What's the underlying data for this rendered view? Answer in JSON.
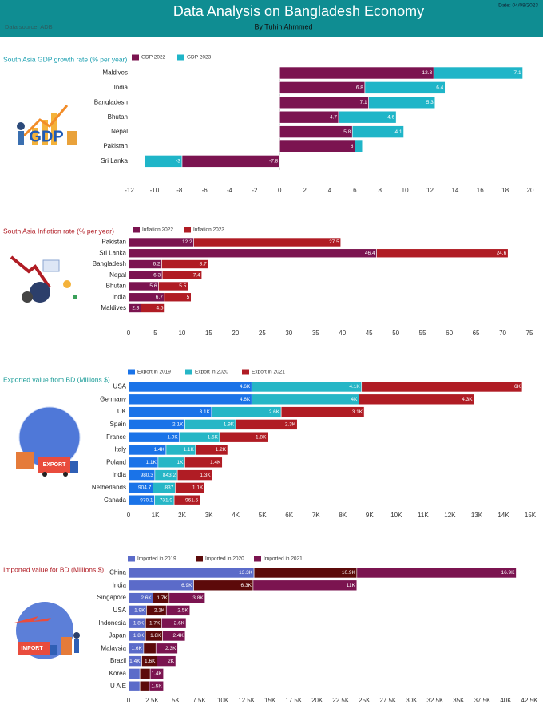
{
  "header": {
    "title": "Data Analysis on Bangladesh Economy",
    "subtitle": "By Tuhin Ahmmed",
    "date": "Date: 04/08/2023",
    "source": "Data source: ADB"
  },
  "chart_data": [
    {
      "type": "bar",
      "orientation": "horizontal",
      "stacked": true,
      "title": "South Asia GDP growth rate (% per year)",
      "title_color": "#1a9fb0",
      "illustration_text": "GDP",
      "categories": [
        "Maldives",
        "India",
        "Bangladesh",
        "Bhutan",
        "Nepal",
        "Pakistan",
        "Sri Lanka"
      ],
      "series": [
        {
          "name": "GDP 2022",
          "color": "#7b1450",
          "values": [
            12.3,
            6.8,
            7.1,
            4.7,
            5.8,
            6,
            -7.8
          ]
        },
        {
          "name": "GDP 2023",
          "color": "#1fb5c8",
          "values": [
            7.1,
            6.4,
            5.3,
            4.6,
            4.1,
            0.6,
            -3
          ]
        }
      ],
      "xlim": [
        -12,
        20
      ],
      "xticks": [
        -12,
        -10,
        -8,
        -6,
        -4,
        -2,
        0,
        2,
        4,
        6,
        8,
        10,
        12,
        14,
        16,
        18,
        20
      ]
    },
    {
      "type": "bar",
      "orientation": "horizontal",
      "stacked": true,
      "title": "South Asia Inflation rate (% per year)",
      "title_color": "#b01c24",
      "categories": [
        "Pakistan",
        "Sri Lanka",
        "Bangladesh",
        "Nepal",
        "Bhutan",
        "India",
        "Maldives"
      ],
      "series": [
        {
          "name": "Inflation 2022",
          "color": "#7b1450",
          "values": [
            12.2,
            46.4,
            6.2,
            6.3,
            5.6,
            6.7,
            2.3
          ]
        },
        {
          "name": "Inflation 2023",
          "color": "#b01c24",
          "values": [
            27.5,
            24.6,
            8.7,
            7.4,
            5.5,
            5,
            4.5
          ]
        }
      ],
      "xlim": [
        0,
        75
      ],
      "xticks": [
        0,
        5,
        10,
        15,
        20,
        25,
        30,
        35,
        40,
        45,
        50,
        55,
        60,
        65,
        70,
        75
      ]
    },
    {
      "type": "bar",
      "orientation": "horizontal",
      "stacked": true,
      "title": "Exported value from BD (Millions $)",
      "title_color": "#1f9e9a",
      "illustration_text": "EXPORT",
      "categories": [
        "USA",
        "Germany",
        "UK",
        "Spain",
        "France",
        "Italy",
        "Poland",
        "India",
        "Netherlands",
        "Canada"
      ],
      "series": [
        {
          "name": "Export in 2019",
          "color": "#1a73e8",
          "values": [
            4600,
            4600,
            3100,
            2100,
            1900,
            1400,
            1100,
            980.3,
            904.7,
            970.1
          ],
          "value_labels": [
            "4.6K",
            "4.6K",
            "3.1K",
            "2.1K",
            "1.9K",
            "1.4K",
            "1.1K",
            "980.3",
            "904.7",
            "970.1"
          ]
        },
        {
          "name": "Export in 2020",
          "color": "#26b6c6",
          "values": [
            4100,
            4000,
            2600,
            1900,
            1500,
            1100,
            1000,
            843.2,
            837,
            731.9
          ],
          "value_labels": [
            "4.1K",
            "4K",
            "2.6K",
            "1.9K",
            "1.5K",
            "1.1K",
            "1K",
            "843.2",
            "837",
            "731.9"
          ]
        },
        {
          "name": "Export in 2021",
          "color": "#b01c24",
          "values": [
            6000,
            4300,
            3100,
            2300,
            1800,
            1200,
            1400,
            1300,
            1100,
            961.5
          ],
          "value_labels": [
            "6K",
            "4.3K",
            "3.1K",
            "2.3K",
            "1.8K",
            "1.2K",
            "1.4K",
            "1.3K",
            "1.1K",
            "961.5"
          ]
        }
      ],
      "xlim": [
        0,
        15000
      ],
      "xticks": [
        0,
        {
          "value": 1000,
          "label": "1K"
        },
        {
          "value": 2000,
          "label": "2K"
        },
        {
          "value": 3000,
          "label": "3K"
        },
        {
          "value": 4000,
          "label": "4K"
        },
        {
          "value": 5000,
          "label": "5K"
        },
        {
          "value": 6000,
          "label": "6K"
        },
        {
          "value": 7000,
          "label": "7K"
        },
        {
          "value": 8000,
          "label": "8K"
        },
        {
          "value": 9000,
          "label": "9K"
        },
        {
          "value": 10000,
          "label": "10K"
        },
        {
          "value": 11000,
          "label": "11K"
        },
        {
          "value": 12000,
          "label": "12K"
        },
        {
          "value": 13000,
          "label": "13K"
        },
        {
          "value": 14000,
          "label": "14K"
        },
        {
          "value": 15000,
          "label": "15K"
        }
      ]
    },
    {
      "type": "bar",
      "orientation": "horizontal",
      "stacked": true,
      "title": "Imported value for BD (Millions $)",
      "title_color": "#b01c24",
      "illustration_text": "IMPORT",
      "categories": [
        "China",
        "India",
        "Singapore",
        "USA",
        "Indonesia",
        "Japan",
        "Malaysia",
        "Brazil",
        "Korea",
        "U A E"
      ],
      "series": [
        {
          "name": "Imported in 2019",
          "color": "#5b6bc9",
          "values": [
            13300,
            6900,
            2600,
            1900,
            1800,
            1800,
            1600,
            1400,
            1200,
            1200
          ],
          "value_labels": [
            "13.3K",
            "6.9K",
            "2.6K",
            "1.9K",
            "1.8K",
            "1.8K",
            "1.6K",
            "1.4K",
            null,
            null
          ]
        },
        {
          "name": "Imported in 2020",
          "color": "#5c0a0a",
          "values": [
            10900,
            6300,
            1700,
            2100,
            1700,
            1800,
            1300,
            1600,
            1100,
            1000
          ],
          "value_labels": [
            "10.9K",
            "6.3K",
            "1.7K",
            "2.1K",
            "1.7K",
            "1.8K",
            null,
            "1.6K",
            null,
            null
          ]
        },
        {
          "name": "Imported in 2021",
          "color": "#7b1450",
          "values": [
            16900,
            11000,
            3800,
            2500,
            2600,
            2400,
            2300,
            2000,
            1400,
            1500
          ],
          "value_labels": [
            "16.9K",
            "11K",
            "3.8K",
            "2.5K",
            "2.6K",
            "2.4K",
            "2.3K",
            "2K",
            "1.4K",
            "1.5K"
          ]
        }
      ],
      "xlim": [
        0,
        42500
      ],
      "xticks": [
        0,
        {
          "value": 2500,
          "label": "2.5K"
        },
        {
          "value": 5000,
          "label": "5K"
        },
        {
          "value": 7500,
          "label": "7.5K"
        },
        {
          "value": 10000,
          "label": "10K"
        },
        {
          "value": 12500,
          "label": "12.5K"
        },
        {
          "value": 15000,
          "label": "15K"
        },
        {
          "value": 17500,
          "label": "17.5K"
        },
        {
          "value": 20000,
          "label": "20K"
        },
        {
          "value": 22500,
          "label": "22.5K"
        },
        {
          "value": 25000,
          "label": "25K"
        },
        {
          "value": 27500,
          "label": "27.5K"
        },
        {
          "value": 30000,
          "label": "30K"
        },
        {
          "value": 32500,
          "label": "32.5K"
        },
        {
          "value": 35000,
          "label": "35K"
        },
        {
          "value": 37500,
          "label": "37.5K"
        },
        {
          "value": 40000,
          "label": "40K"
        },
        {
          "value": 42500,
          "label": "42.5K"
        }
      ]
    }
  ]
}
